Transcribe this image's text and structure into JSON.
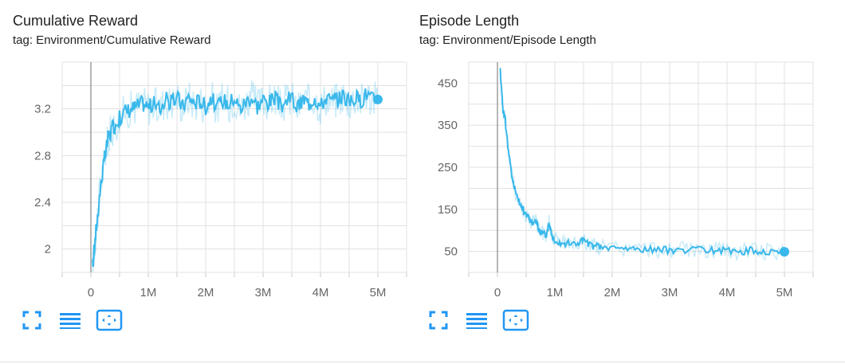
{
  "charts": [
    {
      "title": "Cumulative Reward",
      "tag": "tag: Environment/Cumulative Reward",
      "chart_data": {
        "type": "line",
        "xlabel": "",
        "ylabel": "",
        "x_ticks": [
          0,
          1000000,
          2000000,
          3000000,
          4000000,
          5000000
        ],
        "x_tick_labels": [
          "0",
          "1M",
          "2M",
          "3M",
          "4M",
          "5M"
        ],
        "y_ticks": [
          2,
          2.4,
          2.8,
          3.2
        ],
        "y_tick_labels": [
          "2",
          "2.4",
          "2.8",
          "3.2"
        ],
        "xlim": [
          -500000,
          5500000
        ],
        "ylim": [
          1.8,
          3.6
        ],
        "grid": true,
        "color": "#39b8eb",
        "series": [
          {
            "smoothed": true,
            "x": [
              30000,
              60000,
              100000,
              150000,
              200000,
              250000,
              300000,
              350000,
              400000,
              500000,
              600000,
              700000,
              800000,
              900000,
              1000000,
              1100000,
              1200000,
              1300000,
              1400000,
              1500000,
              1600000,
              1700000,
              1800000,
              1900000,
              2000000,
              2100000,
              2200000,
              2300000,
              2400000,
              2500000,
              2600000,
              2700000,
              2800000,
              2900000,
              3000000,
              3100000,
              3200000,
              3300000,
              3400000,
              3500000,
              3600000,
              3700000,
              3800000,
              3900000,
              4000000,
              4100000,
              4200000,
              4300000,
              4400000,
              4500000,
              4600000,
              4700000,
              4800000,
              4900000,
              5000000
            ],
            "y": [
              1.85,
              2.0,
              2.2,
              2.45,
              2.65,
              2.8,
              2.95,
              3.0,
              3.05,
              3.12,
              3.18,
              3.2,
              3.22,
              3.25,
              3.22,
              3.24,
              3.2,
              3.28,
              3.25,
              3.3,
              3.22,
              3.3,
              3.25,
              3.27,
              3.22,
              3.3,
              3.2,
              3.28,
              3.24,
              3.3,
              3.2,
              3.26,
              3.3,
              3.22,
              3.28,
              3.25,
              3.3,
              3.22,
              3.26,
              3.3,
              3.2,
              3.28,
              3.25,
              3.3,
              3.22,
              3.3,
              3.26,
              3.28,
              3.32,
              3.25,
              3.3,
              3.27,
              3.33,
              3.28,
              3.28
            ]
          }
        ]
      }
    },
    {
      "title": "Episode Length",
      "tag": "tag: Environment/Episode Length",
      "chart_data": {
        "type": "line",
        "xlabel": "",
        "ylabel": "",
        "x_ticks": [
          0,
          1000000,
          2000000,
          3000000,
          4000000,
          5000000
        ],
        "x_tick_labels": [
          "0",
          "1M",
          "2M",
          "3M",
          "4M",
          "5M"
        ],
        "y_ticks": [
          50,
          150,
          250,
          350,
          450
        ],
        "y_tick_labels": [
          "50",
          "150",
          "250",
          "350",
          "450"
        ],
        "xlim": [
          -500000,
          5500000
        ],
        "ylim": [
          0,
          500
        ],
        "grid": true,
        "color": "#39b8eb",
        "series": [
          {
            "smoothed": true,
            "x": [
              50000,
              80000,
              100000,
              130000,
              160000,
              200000,
              250000,
              300000,
              350000,
              400000,
              450000,
              500000,
              550000,
              600000,
              650000,
              700000,
              750000,
              800000,
              850000,
              900000,
              950000,
              1000000,
              1100000,
              1200000,
              1300000,
              1400000,
              1500000,
              1600000,
              1700000,
              1800000,
              2000000,
              2200000,
              2400000,
              2600000,
              2800000,
              3000000,
              3200000,
              3400000,
              3600000,
              3800000,
              4000000,
              4200000,
              4400000,
              4600000,
              4800000,
              5000000
            ],
            "y": [
              480,
              420,
              380,
              370,
              330,
              280,
              230,
              200,
              175,
              160,
              150,
              135,
              130,
              118,
              125,
              110,
              95,
              92,
              88,
              120,
              85,
              78,
              72,
              70,
              68,
              70,
              78,
              65,
              62,
              60,
              58,
              57,
              56,
              55,
              54,
              53,
              55,
              53,
              52,
              53,
              51,
              50,
              52,
              50,
              50,
              49
            ]
          }
        ]
      }
    }
  ],
  "buttons": [
    "fullscreen-icon",
    "lines-icon",
    "fit-domain-icon"
  ],
  "accent_color": "#2196f3"
}
